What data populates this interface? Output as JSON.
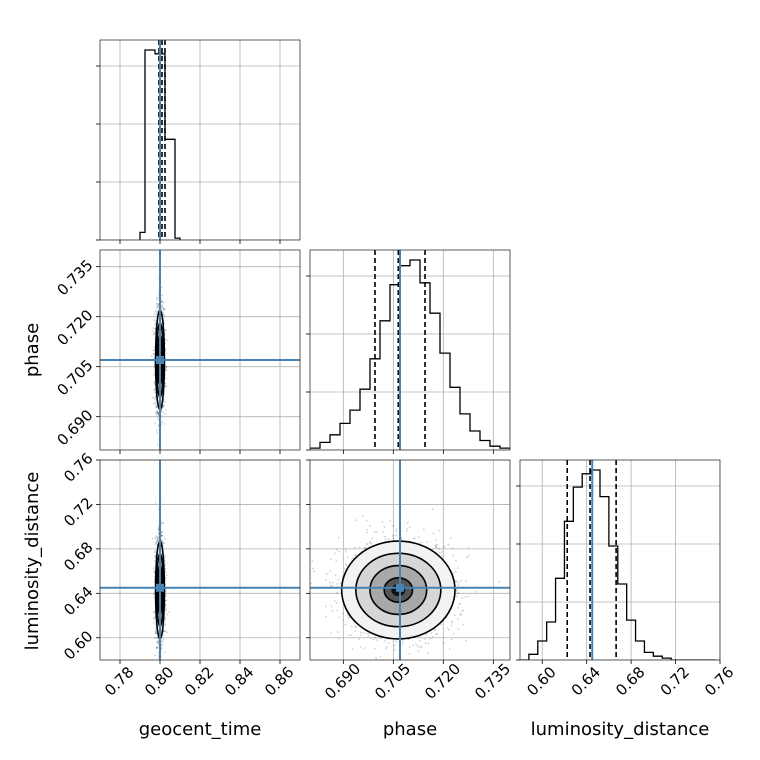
{
  "chart_data": {
    "type": "corner",
    "parameters": [
      "geocent_time",
      "phase",
      "luminosity_distance"
    ],
    "truths": {
      "geocent_time": 0.8,
      "phase": 0.707,
      "luminosity_distance": 0.645
    },
    "colors": {
      "truth": "#4682b4",
      "hist": "#000000",
      "grid": "#b0b0b0",
      "points": "#333333"
    },
    "grid": true,
    "axes": {
      "geocent_time": {
        "range": [
          0.77,
          0.87
        ],
        "ticks": [
          0.78,
          0.8,
          0.82,
          0.84,
          0.86
        ],
        "tick_labels": [
          "0.78",
          "0.80",
          "0.82",
          "0.84",
          "0.86"
        ]
      },
      "phase": {
        "range": [
          0.68,
          0.74
        ],
        "ticks": [
          0.69,
          0.705,
          0.72,
          0.735
        ],
        "tick_labels": [
          "0.690",
          "0.705",
          "0.720",
          "0.735"
        ]
      },
      "luminosity_distance": {
        "range": [
          0.58,
          0.76
        ],
        "ticks": [
          0.6,
          0.64,
          0.68,
          0.72,
          0.76
        ],
        "tick_labels": [
          "0.60",
          "0.64",
          "0.68",
          "0.72",
          "0.76"
        ]
      }
    },
    "marginals": {
      "geocent_time": {
        "bin_edges": [
          0.7925,
          0.7975,
          0.8025,
          0.8075
        ],
        "counts": [
          1.0,
          0.98,
          0.53
        ],
        "quantiles": [
          0.7995,
          0.801,
          0.8025
        ],
        "tail_bins": [
          {
            "edge_lo": 0.79,
            "edge_hi": 0.7925,
            "count": 0.04
          },
          {
            "edge_lo": 0.8075,
            "edge_hi": 0.81,
            "count": 0.01
          }
        ]
      },
      "phase": {
        "bin_edges": [
          0.68,
          0.683,
          0.686,
          0.689,
          0.692,
          0.695,
          0.698,
          0.701,
          0.704,
          0.707,
          0.71,
          0.713,
          0.716,
          0.719,
          0.722,
          0.725,
          0.728,
          0.731,
          0.734,
          0.737,
          0.74
        ],
        "counts": [
          0.01,
          0.04,
          0.08,
          0.14,
          0.21,
          0.32,
          0.48,
          0.68,
          0.87,
          0.97,
          1.0,
          0.88,
          0.72,
          0.51,
          0.33,
          0.19,
          0.1,
          0.05,
          0.02,
          0.01
        ],
        "quantiles": [
          0.6995,
          0.7065,
          0.7145
        ]
      },
      "luminosity_distance": {
        "bin_edges": [
          0.58,
          0.588,
          0.596,
          0.604,
          0.612,
          0.62,
          0.628,
          0.636,
          0.644,
          0.652,
          0.66,
          0.668,
          0.676,
          0.684,
          0.692,
          0.7,
          0.708,
          0.716,
          0.724,
          0.732,
          0.74,
          0.748,
          0.756
        ],
        "counts": [
          0.0,
          0.03,
          0.1,
          0.2,
          0.43,
          0.73,
          0.91,
          0.98,
          1.0,
          0.86,
          0.6,
          0.4,
          0.21,
          0.1,
          0.04,
          0.02,
          0.01,
          0.0,
          0.0,
          0.0,
          0.0,
          0.0
        ],
        "quantiles": [
          0.6225,
          0.643,
          0.6665
        ]
      }
    },
    "joint": {
      "phase_vs_geocent_time": {
        "x": "geocent_time",
        "y": "phase",
        "center": [
          0.8,
          0.707
        ],
        "sd": [
          0.0011,
          0.0075
        ],
        "n_samples": 1800
      },
      "luminosity_distance_vs_geocent_time": {
        "x": "geocent_time",
        "y": "luminosity_distance",
        "center": [
          0.8,
          0.643
        ],
        "sd": [
          0.0011,
          0.022
        ],
        "n_samples": 1800
      },
      "luminosity_distance_vs_phase": {
        "x": "phase",
        "y": "luminosity_distance",
        "center": [
          0.7065,
          0.643
        ],
        "sd": [
          0.0085,
          0.022
        ],
        "n_samples": 1800
      }
    }
  }
}
